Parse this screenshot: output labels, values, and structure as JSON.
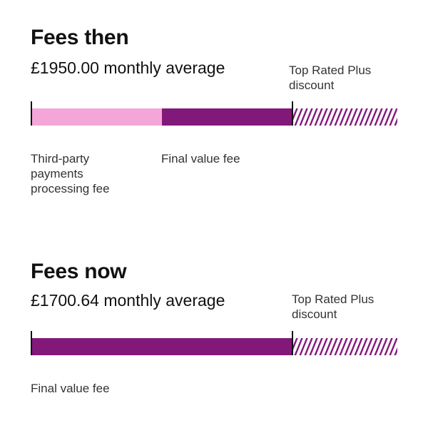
{
  "colors": {
    "light_pink": "#f5a6d8",
    "dark_purple": "#82187a",
    "hatch": "#82187a"
  },
  "chart_data": [
    {
      "type": "bar",
      "orientation": "horizontal-stacked",
      "title": "Fees then",
      "subtitle": "£1950.00 monthly average",
      "discount_label": "Top Rated Plus discount",
      "segments": [
        {
          "name": "Third-party payments processing fee",
          "share": 0.5,
          "color": "#f5a6d8"
        },
        {
          "name": "Final value fee",
          "share": 0.5,
          "color": "#82187a"
        }
      ]
    },
    {
      "type": "bar",
      "orientation": "horizontal-stacked",
      "title": "Fees now",
      "subtitle": "£1700.64 monthly average",
      "discount_label": "Top Rated Plus discount",
      "segments": [
        {
          "name": "Final value fee",
          "share": 1.0,
          "color": "#82187a"
        }
      ]
    }
  ]
}
